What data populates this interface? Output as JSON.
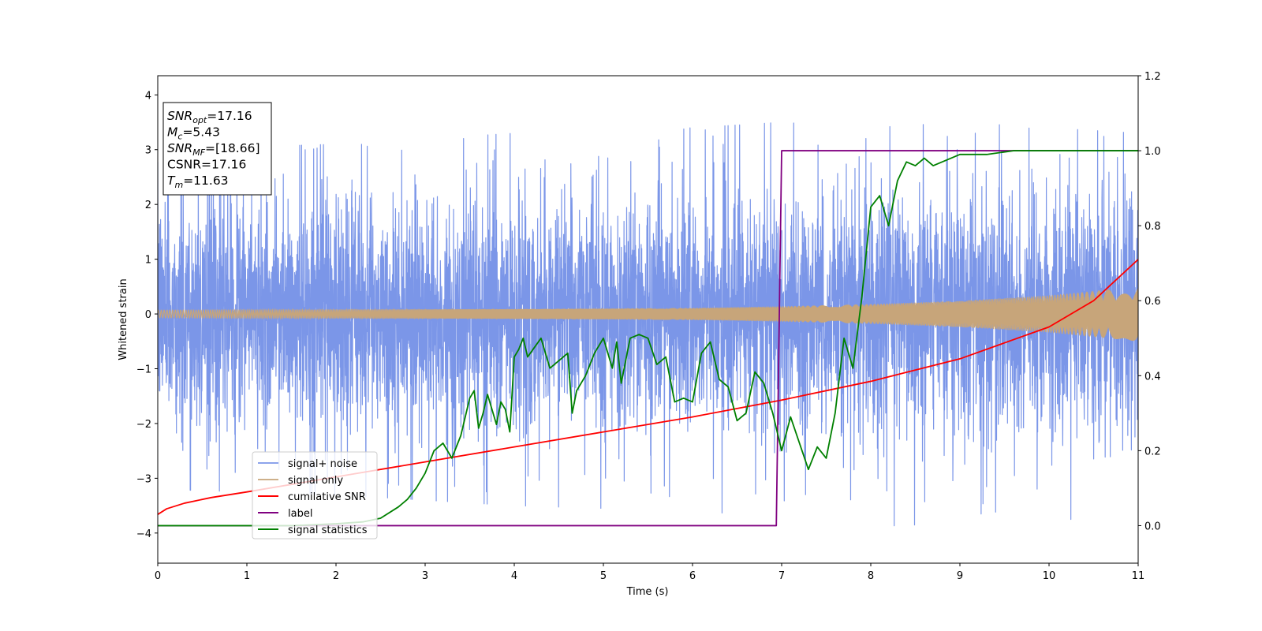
{
  "chart_data": {
    "type": "line",
    "xlabel": "Time (s)",
    "ylabel": "Whitened strain",
    "xlim": [
      0,
      11
    ],
    "ylim_left": [
      -4.55,
      4.35
    ],
    "ylim_right": [
      -0.1,
      1.2
    ],
    "x_ticks": [
      "0",
      "1",
      "2",
      "3",
      "4",
      "5",
      "6",
      "7",
      "8",
      "9",
      "10",
      "11"
    ],
    "y_ticks_left": [
      "−4",
      "−3",
      "−2",
      "−1",
      "0",
      "1",
      "2",
      "3",
      "4"
    ],
    "y_ticks_right": [
      "0.0",
      "0.2",
      "0.4",
      "0.6",
      "0.8",
      "1.0",
      "1.2"
    ],
    "grid": false,
    "legend_position": "lower-left",
    "annotation": {
      "lines": [
        {
          "name": "SNR",
          "sub": "opt",
          "value": "=17.16"
        },
        {
          "name": "M",
          "sub": "c",
          "value": "=5.43"
        },
        {
          "name": "SNR",
          "sub": "MF",
          "value": "=[18.66]"
        },
        {
          "name": "CSNR",
          "sub": "",
          "value": "=17.16"
        },
        {
          "name": "T",
          "sub": "m",
          "value": "=11.63"
        }
      ]
    },
    "series": [
      {
        "name": "signal+ noise",
        "axis": "left",
        "color": "#7b96e8",
        "kind": "noise",
        "noise_sigma": 1.0,
        "envelope_x": [
          0,
          2,
          4,
          6,
          7,
          8,
          9,
          10,
          11
        ],
        "envelope_max": [
          3.0,
          3.1,
          3.3,
          3.4,
          3.5,
          3.4,
          3.5,
          3.4,
          3.3
        ],
        "envelope_min": [
          -3.2,
          -3.3,
          -3.5,
          -3.6,
          -3.7,
          -4.0,
          -3.7,
          -3.8,
          -3.6
        ]
      },
      {
        "name": "signal only",
        "axis": "left",
        "color": "#c7a57a",
        "kind": "chirp",
        "amplitude_x": [
          0,
          2,
          4,
          6,
          7,
          8,
          9,
          10,
          11
        ],
        "amplitude_y": [
          0.07,
          0.08,
          0.09,
          0.11,
          0.14,
          0.18,
          0.24,
          0.34,
          0.5
        ]
      },
      {
        "name": "cumilative SNR",
        "axis": "right",
        "color": "#ff0000",
        "x": [
          0,
          0.1,
          0.3,
          0.6,
          1,
          2,
          3,
          4,
          5,
          6,
          7,
          8,
          9,
          10,
          10.5,
          11
        ],
        "y": [
          0.03,
          0.045,
          0.06,
          0.075,
          0.09,
          0.13,
          0.17,
          0.21,
          0.25,
          0.29,
          0.335,
          0.385,
          0.445,
          0.53,
          0.6,
          0.71
        ]
      },
      {
        "name": "label",
        "axis": "right",
        "color": "#800080",
        "x": [
          0,
          6.94,
          7.0,
          11
        ],
        "y": [
          0,
          0,
          1,
          1
        ]
      },
      {
        "name": "signal statistics",
        "axis": "right",
        "color": "#008000",
        "x": [
          0,
          0.5,
          1,
          1.5,
          2,
          2.3,
          2.5,
          2.7,
          2.8,
          2.9,
          3.0,
          3.1,
          3.2,
          3.3,
          3.4,
          3.5,
          3.55,
          3.6,
          3.65,
          3.7,
          3.8,
          3.85,
          3.9,
          3.95,
          4.0,
          4.05,
          4.1,
          4.15,
          4.3,
          4.4,
          4.5,
          4.6,
          4.65,
          4.7,
          4.8,
          4.9,
          5.0,
          5.1,
          5.15,
          5.2,
          5.3,
          5.4,
          5.5,
          5.6,
          5.7,
          5.8,
          5.9,
          6.0,
          6.1,
          6.2,
          6.3,
          6.4,
          6.5,
          6.6,
          6.7,
          6.8,
          6.9,
          7.0,
          7.1,
          7.2,
          7.3,
          7.4,
          7.5,
          7.6,
          7.7,
          7.8,
          7.9,
          8.0,
          8.1,
          8.2,
          8.3,
          8.4,
          8.5,
          8.6,
          8.7,
          8.8,
          8.9,
          9.0,
          9.3,
          9.6,
          10,
          11
        ],
        "y": [
          0,
          0,
          0.0,
          0.0,
          0.005,
          0.01,
          0.02,
          0.05,
          0.07,
          0.1,
          0.14,
          0.2,
          0.22,
          0.18,
          0.24,
          0.34,
          0.36,
          0.26,
          0.3,
          0.35,
          0.27,
          0.33,
          0.31,
          0.25,
          0.45,
          0.47,
          0.5,
          0.45,
          0.5,
          0.42,
          0.44,
          0.46,
          0.3,
          0.36,
          0.4,
          0.46,
          0.5,
          0.42,
          0.49,
          0.38,
          0.5,
          0.51,
          0.5,
          0.43,
          0.45,
          0.33,
          0.34,
          0.33,
          0.46,
          0.49,
          0.39,
          0.37,
          0.28,
          0.3,
          0.41,
          0.38,
          0.3,
          0.2,
          0.29,
          0.22,
          0.15,
          0.21,
          0.18,
          0.3,
          0.5,
          0.42,
          0.61,
          0.85,
          0.88,
          0.8,
          0.92,
          0.97,
          0.96,
          0.98,
          0.96,
          0.97,
          0.98,
          0.99,
          0.99,
          1.0,
          1.0,
          1.0
        ]
      }
    ]
  }
}
